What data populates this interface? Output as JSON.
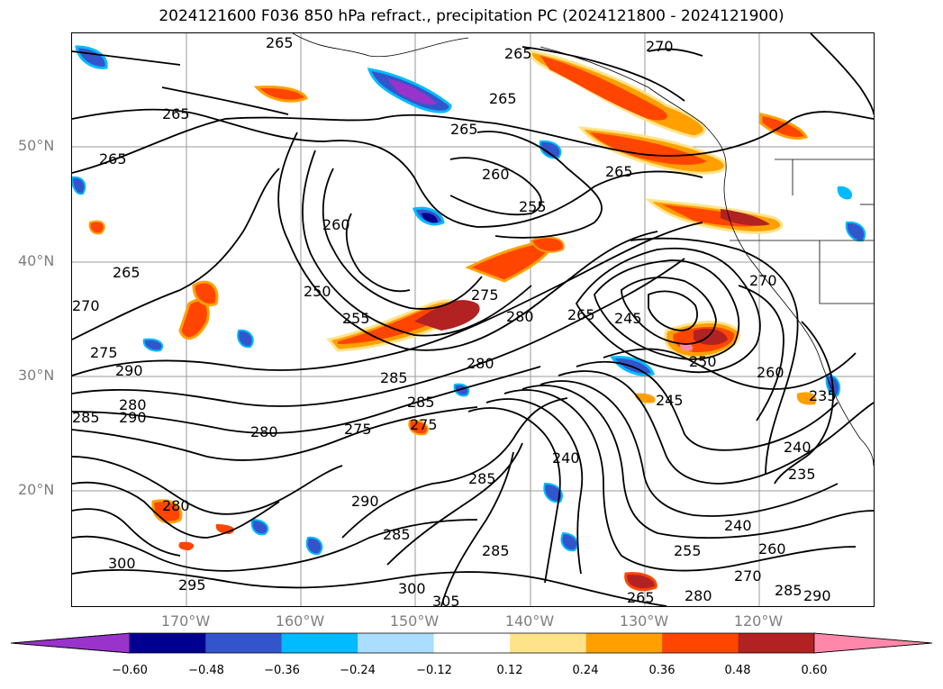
{
  "title": "2024121600 F036 850 hPa refract., precipitation PC (2024121800 - 2024121900)",
  "map": {
    "lat_labels": [
      "50°N",
      "40°N",
      "30°N",
      "20°N"
    ],
    "lon_labels": [
      "170°W",
      "160°W",
      "150°W",
      "140°W",
      "130°W",
      "120°W"
    ],
    "contour_labels": [
      "265",
      "265",
      "270",
      "265",
      "265",
      "265",
      "265",
      "265",
      "260",
      "255",
      "260",
      "250",
      "255",
      "265",
      "245",
      "275",
      "280",
      "280",
      "265",
      "270",
      "275",
      "290",
      "280",
      "285",
      "290",
      "285",
      "285",
      "280",
      "275",
      "275",
      "250",
      "260",
      "245",
      "235",
      "240",
      "235",
      "240",
      "285",
      "290",
      "285",
      "300",
      "295",
      "300",
      "305",
      "285",
      "240",
      "255",
      "260",
      "270",
      "265",
      "280",
      "285",
      "290",
      "270",
      "280"
    ],
    "shading_colors": {
      "neg_strong": "#9933cc",
      "neg_dark": "#000090",
      "neg_mid": "#3355cc",
      "neg_light": "#00bbff",
      "neg_pale": "#aaddff",
      "pos_pale": "#ffe38a",
      "pos_mid": "#ffa000",
      "pos_strong": "#ff4500",
      "pos_dark": "#b22222",
      "pos_max": "#ff88aa"
    }
  },
  "colorbar": {
    "colors": [
      "#9933cc",
      "#000090",
      "#3355cc",
      "#00bbff",
      "#aaddff",
      "#ffffff",
      "#ffe38a",
      "#ffa000",
      "#ff4500",
      "#b22222",
      "#ff88aa"
    ],
    "ticks": [
      "−0.60",
      "−0.48",
      "−0.36",
      "−0.24",
      "−0.12",
      "0.12",
      "0.24",
      "0.36",
      "0.48",
      "0.60"
    ]
  }
}
